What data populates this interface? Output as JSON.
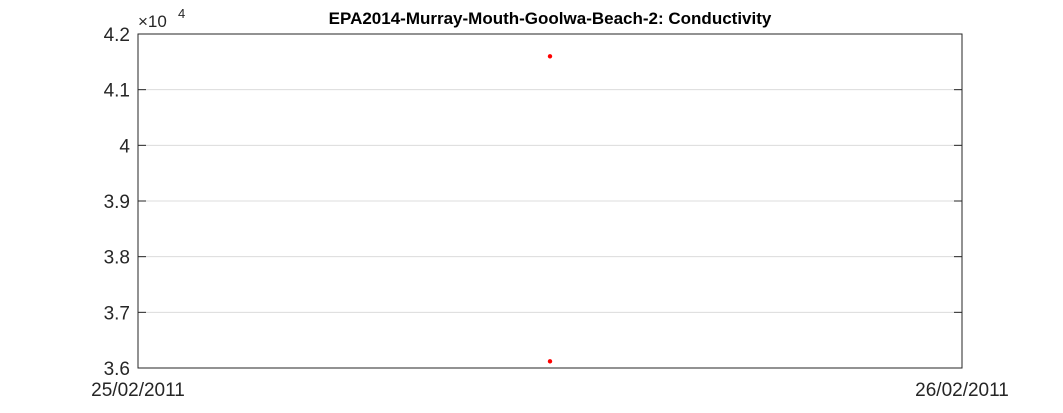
{
  "chart_data": {
    "type": "scatter",
    "title": "EPA2014-Murray-Mouth-Goolwa-Beach-2: Conductivity",
    "xlabel": "",
    "ylabel": "",
    "y_exponent_label": "×10",
    "y_exponent_power": "4",
    "xlim": [
      "25/02/2011",
      "26/02/2011"
    ],
    "x_tick_labels": [
      "25/02/2011",
      "26/02/2011"
    ],
    "ylim": [
      36000,
      42000
    ],
    "y_ticks": [
      36000,
      37000,
      38000,
      39000,
      40000,
      41000,
      42000
    ],
    "y_tick_labels": [
      "3.6",
      "3.7",
      "3.8",
      "3.9",
      "4",
      "4.1",
      "4.2"
    ],
    "grid": true,
    "points": [
      {
        "x": "25/02/2011 12:00",
        "y": 41600
      },
      {
        "x": "25/02/2011 12:00",
        "y": 36120
      }
    ],
    "marker_color": "#ff0000"
  }
}
